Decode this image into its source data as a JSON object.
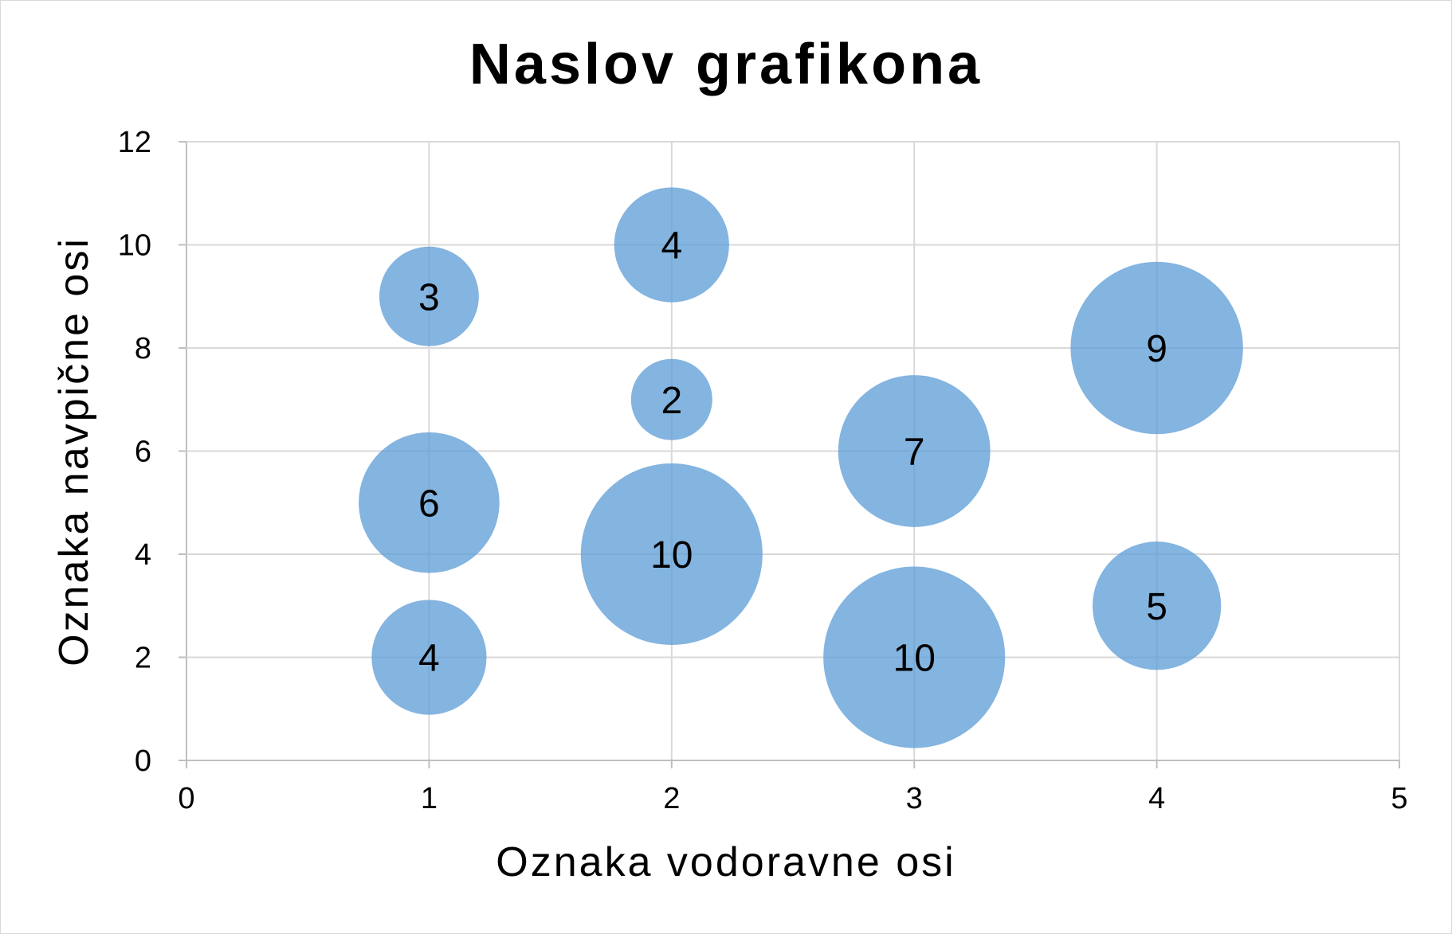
{
  "chart_data": {
    "type": "bubble",
    "title": "Naslov grafikona",
    "xlabel": "Oznaka vodoravne osi",
    "ylabel": "Oznaka navpične osi",
    "xlim": [
      0,
      5
    ],
    "ylim": [
      0,
      12
    ],
    "xticks": [
      0,
      1,
      2,
      3,
      4,
      5
    ],
    "yticks": [
      0,
      2,
      4,
      6,
      8,
      10,
      12
    ],
    "grid": true,
    "legend": "none",
    "bubble_color": "#5b9bd5",
    "points": [
      {
        "x": 1,
        "y": 9,
        "size": 3
      },
      {
        "x": 1,
        "y": 5,
        "size": 6
      },
      {
        "x": 1,
        "y": 2,
        "size": 4
      },
      {
        "x": 2,
        "y": 10,
        "size": 4
      },
      {
        "x": 2,
        "y": 7,
        "size": 2
      },
      {
        "x": 2,
        "y": 4,
        "size": 10
      },
      {
        "x": 3,
        "y": 6,
        "size": 7
      },
      {
        "x": 3,
        "y": 2,
        "size": 10
      },
      {
        "x": 4,
        "y": 8,
        "size": 9
      },
      {
        "x": 4,
        "y": 3,
        "size": 5
      }
    ]
  }
}
